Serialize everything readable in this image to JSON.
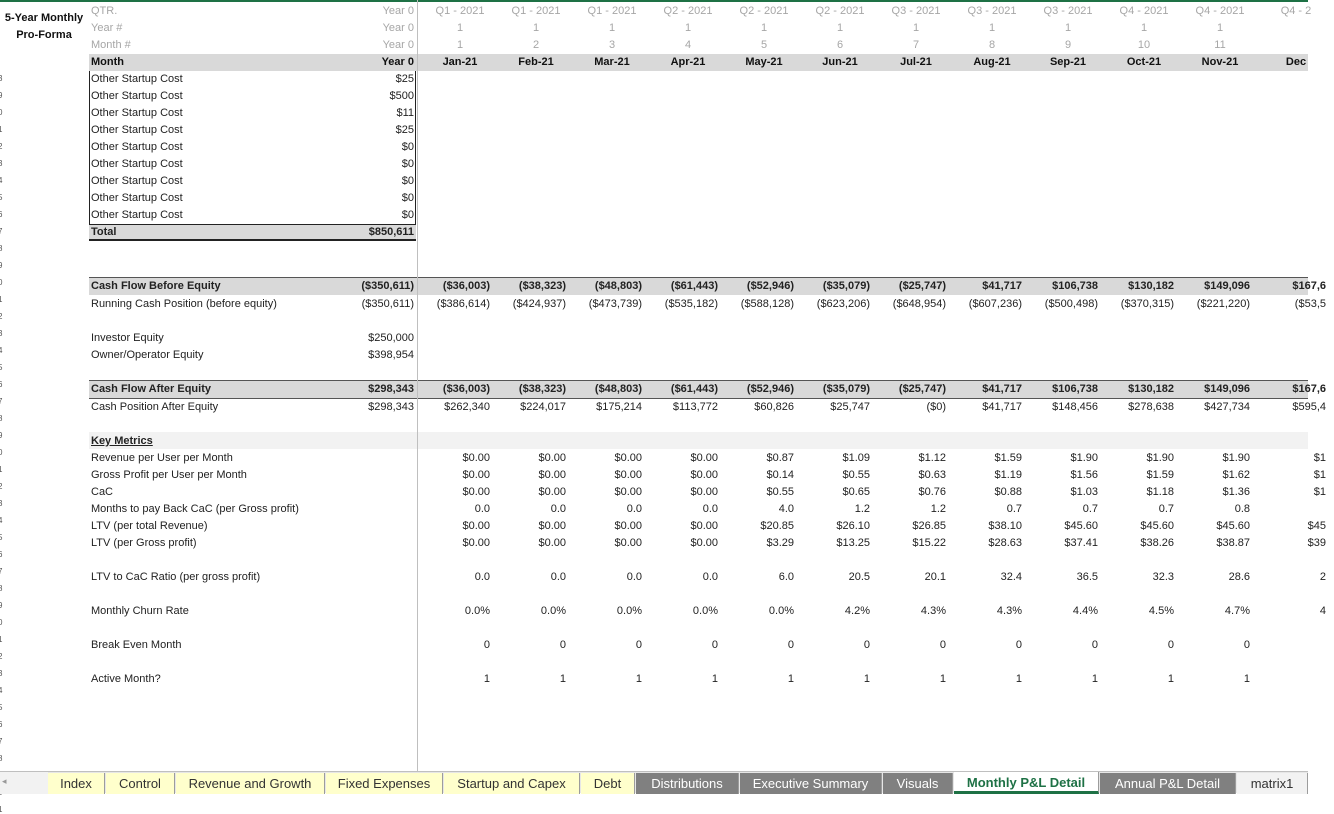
{
  "sheet_title": [
    "5-Year Monthly",
    "Pro-Forma"
  ],
  "row_numbers": [
    "3",
    "9",
    "0",
    "1",
    "2",
    "3",
    "4",
    "5",
    "6",
    "7",
    "8",
    "9",
    "0",
    "1",
    "2",
    "3",
    "4",
    "5",
    "6",
    "7",
    "8",
    "9",
    "0",
    "1",
    "2",
    "3",
    "4",
    "5",
    "6",
    "7",
    "8",
    "9",
    "0",
    "1",
    "2",
    "3",
    "4",
    "5",
    "6",
    "7",
    "8",
    "9",
    "0",
    "1"
  ],
  "header": {
    "qtr": {
      "label": "QTR.",
      "year0": "Year 0",
      "months": [
        "Q1 - 2021",
        "Q1 - 2021",
        "Q1 - 2021",
        "Q2 - 2021",
        "Q2 - 2021",
        "Q2 - 2021",
        "Q3 - 2021",
        "Q3 - 2021",
        "Q3 - 2021",
        "Q4 - 2021",
        "Q4 - 2021",
        "Q4 - 2"
      ]
    },
    "year": {
      "label": "Year #",
      "year0": "Year 0",
      "months": [
        "1",
        "1",
        "1",
        "1",
        "1",
        "1",
        "1",
        "1",
        "1",
        "1",
        "1",
        ""
      ]
    },
    "month_num": {
      "label": "Month #",
      "year0": "Year 0",
      "months": [
        "1",
        "2",
        "3",
        "4",
        "5",
        "6",
        "7",
        "8",
        "9",
        "10",
        "11",
        ""
      ]
    },
    "month": {
      "label": "Month",
      "year0": "Year 0",
      "months": [
        "Jan-21",
        "Feb-21",
        "Mar-21",
        "Apr-21",
        "May-21",
        "Jun-21",
        "Jul-21",
        "Aug-21",
        "Sep-21",
        "Oct-21",
        "Nov-21",
        "Dec"
      ]
    }
  },
  "startup_costs": [
    {
      "label": "Other Startup Cost",
      "value": "$25"
    },
    {
      "label": "Other Startup Cost",
      "value": "$500"
    },
    {
      "label": "Other Startup Cost",
      "value": "$11"
    },
    {
      "label": "Other Startup Cost",
      "value": "$25"
    },
    {
      "label": "Other Startup Cost",
      "value": "$0"
    },
    {
      "label": "Other Startup Cost",
      "value": "$0"
    },
    {
      "label": "Other Startup Cost",
      "value": "$0"
    },
    {
      "label": "Other Startup Cost",
      "value": "$0"
    },
    {
      "label": "Other Startup Cost",
      "value": "$0"
    }
  ],
  "startup_total": {
    "label": "Total",
    "value": "$850,611"
  },
  "cash_flow_before": {
    "label": "Cash Flow Before Equity",
    "year0": "($350,611)",
    "months": [
      "($36,003)",
      "($38,323)",
      "($48,803)",
      "($61,443)",
      "($52,946)",
      "($35,079)",
      "($25,747)",
      "$41,717",
      "$106,738",
      "$130,182",
      "$149,096",
      "$167,6"
    ]
  },
  "running_cash": {
    "label": "Running Cash Position (before equity)",
    "year0": "($350,611)",
    "months": [
      "($386,614)",
      "($424,937)",
      "($473,739)",
      "($535,182)",
      "($588,128)",
      "($623,206)",
      "($648,954)",
      "($607,236)",
      "($500,498)",
      "($370,315)",
      "($221,220)",
      "($53,5"
    ]
  },
  "investor_equity": {
    "label": "Investor Equity",
    "year0": "$250,000"
  },
  "owner_equity": {
    "label": "Owner/Operator Equity",
    "year0": "$398,954"
  },
  "cash_flow_after": {
    "label": "Cash Flow After Equity",
    "year0": "$298,343",
    "months": [
      "($36,003)",
      "($38,323)",
      "($48,803)",
      "($61,443)",
      "($52,946)",
      "($35,079)",
      "($25,747)",
      "$41,717",
      "$106,738",
      "$130,182",
      "$149,096",
      "$167,6"
    ]
  },
  "cash_position_after": {
    "label": "Cash Position After Equity",
    "year0": "$298,343",
    "months": [
      "$262,340",
      "$224,017",
      "$175,214",
      "$113,772",
      "$60,826",
      "$25,747",
      "($0)",
      "$41,717",
      "$148,456",
      "$278,638",
      "$427,734",
      "$595,4"
    ]
  },
  "key_metrics_title": "Key Metrics",
  "key_metrics": [
    {
      "label": "Revenue per User per Month",
      "months": [
        "$0.00",
        "$0.00",
        "$0.00",
        "$0.00",
        "$0.87",
        "$1.09",
        "$1.12",
        "$1.59",
        "$1.90",
        "$1.90",
        "$1.90",
        "$1"
      ]
    },
    {
      "label": "Gross Profit per User per Month",
      "months": [
        "$0.00",
        "$0.00",
        "$0.00",
        "$0.00",
        "$0.14",
        "$0.55",
        "$0.63",
        "$1.19",
        "$1.56",
        "$1.59",
        "$1.62",
        "$1"
      ]
    },
    {
      "label": "CaC",
      "months": [
        "$0.00",
        "$0.00",
        "$0.00",
        "$0.00",
        "$0.55",
        "$0.65",
        "$0.76",
        "$0.88",
        "$1.03",
        "$1.18",
        "$1.36",
        "$1"
      ]
    },
    {
      "label": "Months to pay Back CaC (per Gross profit)",
      "months": [
        "0.0",
        "0.0",
        "0.0",
        "0.0",
        "4.0",
        "1.2",
        "1.2",
        "0.7",
        "0.7",
        "0.7",
        "0.8",
        ""
      ]
    },
    {
      "label": "LTV (per total Revenue)",
      "months": [
        "$0.00",
        "$0.00",
        "$0.00",
        "$0.00",
        "$20.85",
        "$26.10",
        "$26.85",
        "$38.10",
        "$45.60",
        "$45.60",
        "$45.60",
        "$45"
      ]
    },
    {
      "label": "LTV (per Gross profit)",
      "months": [
        "$0.00",
        "$0.00",
        "$0.00",
        "$0.00",
        "$3.29",
        "$13.25",
        "$15.22",
        "$28.63",
        "$37.41",
        "$38.26",
        "$38.87",
        "$39"
      ]
    }
  ],
  "ltv_cac": {
    "label": "LTV to CaC Ratio (per gross profit)",
    "months": [
      "0.0",
      "0.0",
      "0.0",
      "0.0",
      "6.0",
      "20.5",
      "20.1",
      "32.4",
      "36.5",
      "32.3",
      "28.6",
      "2"
    ]
  },
  "churn": {
    "label": "Monthly Churn Rate",
    "months": [
      "0.0%",
      "0.0%",
      "0.0%",
      "0.0%",
      "0.0%",
      "4.2%",
      "4.3%",
      "4.3%",
      "4.4%",
      "4.5%",
      "4.7%",
      "4"
    ]
  },
  "break_even": {
    "label": "Break Even Month",
    "months": [
      "0",
      "0",
      "0",
      "0",
      "0",
      "0",
      "0",
      "0",
      "0",
      "0",
      "0",
      ""
    ]
  },
  "active_month": {
    "label": "Active Month?",
    "months": [
      "1",
      "1",
      "1",
      "1",
      "1",
      "1",
      "1",
      "1",
      "1",
      "1",
      "1",
      ""
    ]
  },
  "tabs": [
    {
      "label": "Index",
      "style": "yellow"
    },
    {
      "label": "Control",
      "style": "yellow"
    },
    {
      "label": "Revenue and Growth",
      "style": "yellow"
    },
    {
      "label": "Fixed Expenses",
      "style": "yellow"
    },
    {
      "label": "Startup and Capex",
      "style": "yellow"
    },
    {
      "label": "Debt",
      "style": "yellow"
    },
    {
      "label": "Distributions",
      "style": "gray"
    },
    {
      "label": "Executive Summary",
      "style": "gray"
    },
    {
      "label": "Visuals",
      "style": "gray"
    },
    {
      "label": "Monthly P&L Detail",
      "style": "active"
    },
    {
      "label": "Annual P&L Detail",
      "style": "gray"
    },
    {
      "label": "matrix1",
      "style": "plain"
    }
  ],
  "colors": {
    "accent_green": "#1e7145",
    "tab_yellow": "#ffffcc",
    "tab_gray": "#808080",
    "band_gray": "#d9d9d9"
  }
}
